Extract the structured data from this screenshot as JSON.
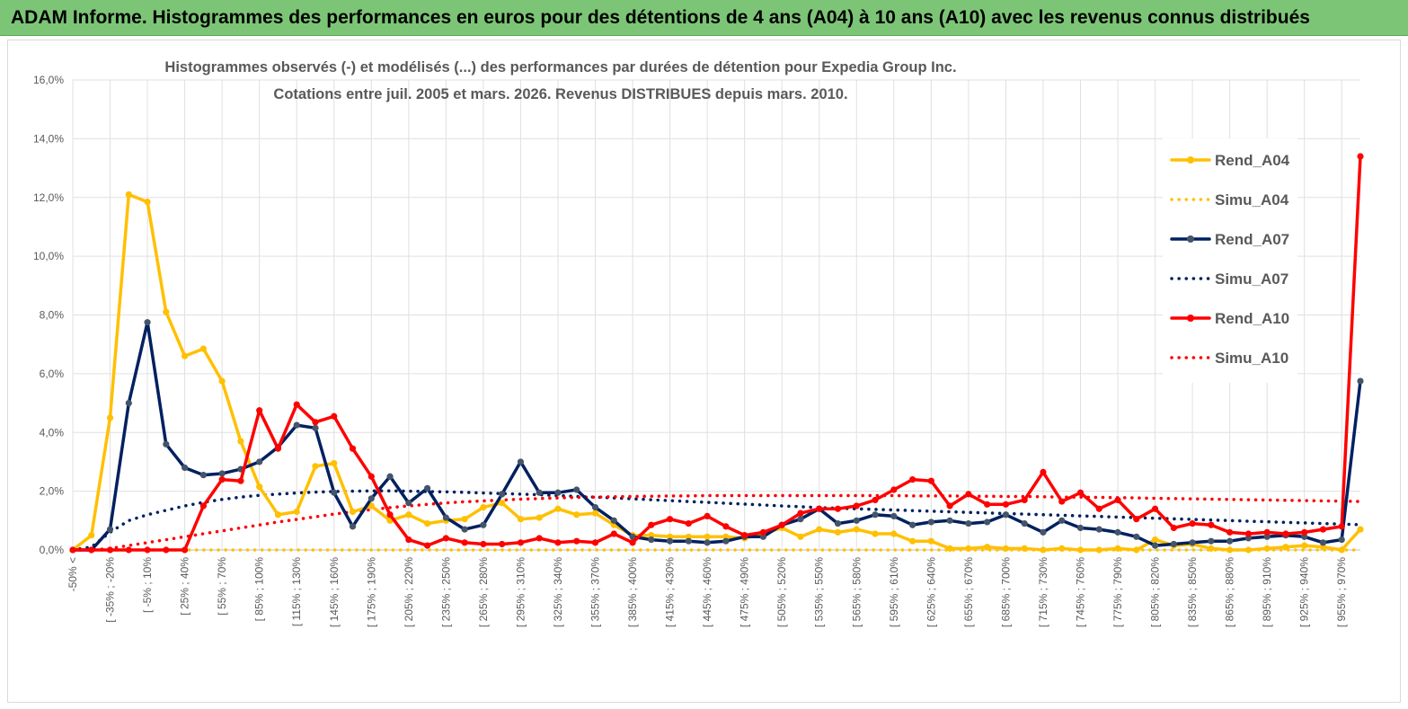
{
  "header": {
    "banner": "ADAM Informe. Histogrammes des performances en euros pour des détentions de 4 ans (A04) à 10 ans (A10) avec les revenus connus distribués"
  },
  "chart_data": {
    "type": "line",
    "title": "Histogrammes observés (-) et modélisés (...) des performances par durées de détention pour Expedia Group Inc.",
    "subtitle": "Cotations entre juil. 2005 et mars. 2026. Revenus DISTRIBUES depuis mars. 2010.",
    "y_ticks": [
      "0,0%",
      "2,0%",
      "4,0%",
      "6,0%",
      "8,0%",
      "10,0%",
      "12,0%",
      "14,0%",
      "16,0%"
    ],
    "ylim": [
      0,
      16
    ],
    "grid": true,
    "legend_position": "right",
    "x_labels": [
      "-50% <",
      "[ -35% ; -20%",
      "[ -5% ; 10%",
      "[ 25% ; 40%",
      "[ 55% ; 70%",
      "[ 85% ; 100%",
      "[ 115% ; 130%",
      "[ 145% ; 160%",
      "[ 175% ; 190%",
      "[ 205% ; 220%",
      "[ 235% ; 250%",
      "[ 265% ; 280%",
      "[ 295% ; 310%",
      "[ 325% ; 340%",
      "[ 355% ; 370%",
      "[ 385% ; 400%",
      "[ 415% ; 430%",
      "[ 445% ; 460%",
      "[ 475% ; 490%",
      "[ 505% ; 520%",
      "[ 535% ; 550%",
      "[ 565% ; 580%",
      "[ 595% ; 610%",
      "[ 625% ; 640%",
      "[ 655% ; 670%",
      "[ 685% ; 700%",
      "[ 715% ; 730%",
      "[ 745% ; 760%",
      "[ 775% ; 790%",
      "[ 805% ; 820%",
      "[ 835% ; 850%",
      "[ 865% ; 880%",
      "[ 895% ; 910%",
      "[ 925% ; 940%",
      "[ 955% ; 970%"
    ],
    "x_label_positions": [
      0,
      2,
      4,
      6,
      8,
      10,
      12,
      14,
      16,
      18,
      20,
      22,
      24,
      26,
      28,
      30,
      32,
      34,
      36,
      38,
      40,
      42,
      44,
      46,
      48,
      50,
      52,
      54,
      56,
      58,
      60,
      62,
      64,
      66,
      68
    ],
    "series": [
      {
        "name": "Rend_A04",
        "color": "#ffc000",
        "style": "solid",
        "markers": true,
        "values": [
          0.0,
          0.5,
          4.5,
          12.1,
          11.85,
          8.1,
          6.6,
          6.85,
          5.75,
          3.7,
          2.15,
          1.2,
          1.3,
          2.85,
          2.95,
          1.3,
          1.5,
          1.0,
          1.2,
          0.9,
          1.0,
          1.05,
          1.45,
          1.6,
          1.05,
          1.1,
          1.4,
          1.2,
          1.25,
          0.85,
          0.5,
          0.5,
          0.45,
          0.45,
          0.45,
          0.45,
          0.4,
          0.55,
          0.75,
          0.45,
          0.7,
          0.6,
          0.7,
          0.55,
          0.55,
          0.3,
          0.3,
          0.05,
          0.05,
          0.1,
          0.05,
          0.05,
          0.0,
          0.05,
          0.0,
          0.0,
          0.05,
          0.0,
          0.35,
          0.15,
          0.2,
          0.05,
          0.0,
          0.0,
          0.05,
          0.1,
          0.15,
          0.1,
          0.0,
          0.7
        ]
      },
      {
        "name": "Simu_A04",
        "color": "#ffc000",
        "style": "dotted",
        "markers": false,
        "values": [
          0.0,
          0.0,
          0.0,
          0.0,
          0.0,
          0.0,
          0.0,
          0.0,
          0.0,
          0.0,
          0.0,
          0.0,
          0.0,
          0.0,
          0.0,
          0.0,
          0.0,
          0.0,
          0.0,
          0.0,
          0.0,
          0.0,
          0.0,
          0.0,
          0.0,
          0.0,
          0.0,
          0.0,
          0.0,
          0.0,
          0.0,
          0.0,
          0.0,
          0.0,
          0.0,
          0.0,
          0.0,
          0.0,
          0.0,
          0.0,
          0.0,
          0.0,
          0.0,
          0.0,
          0.0,
          0.0,
          0.0,
          0.0,
          0.0,
          0.0,
          0.0,
          0.0,
          0.0,
          0.0,
          0.0,
          0.0,
          0.0,
          0.0,
          0.0,
          0.0,
          0.0,
          0.0,
          0.0,
          0.0,
          0.0,
          0.0,
          0.0,
          0.0,
          0.0,
          0.0
        ]
      },
      {
        "name": "Rend_A07",
        "color": "#002060",
        "style": "solid",
        "markers": true,
        "values": [
          0.0,
          0.0,
          0.7,
          5.0,
          7.75,
          3.6,
          2.8,
          2.55,
          2.6,
          2.75,
          3.0,
          3.5,
          4.25,
          4.15,
          1.95,
          0.8,
          1.75,
          2.5,
          1.6,
          2.1,
          1.1,
          0.7,
          0.85,
          1.9,
          3.0,
          1.95,
          1.95,
          2.05,
          1.45,
          1.0,
          0.45,
          0.35,
          0.3,
          0.3,
          0.25,
          0.3,
          0.45,
          0.45,
          0.85,
          1.05,
          1.4,
          0.9,
          1.0,
          1.2,
          1.15,
          0.85,
          0.95,
          1.0,
          0.9,
          0.95,
          1.2,
          0.9,
          0.6,
          1.0,
          0.75,
          0.7,
          0.6,
          0.45,
          0.15,
          0.2,
          0.25,
          0.3,
          0.3,
          0.4,
          0.45,
          0.5,
          0.45,
          0.25,
          0.35,
          5.75
        ]
      },
      {
        "name": "Simu_A07",
        "color": "#002060",
        "style": "dotted",
        "markers": false,
        "values": [
          0.0,
          0.1,
          0.6,
          1.0,
          1.2,
          1.35,
          1.5,
          1.62,
          1.72,
          1.8,
          1.86,
          1.9,
          1.94,
          1.97,
          1.99,
          2.0,
          2.01,
          2.01,
          2.0,
          1.99,
          1.98,
          1.96,
          1.94,
          1.92,
          1.9,
          1.88,
          1.85,
          1.82,
          1.8,
          1.77,
          1.74,
          1.71,
          1.68,
          1.65,
          1.62,
          1.59,
          1.56,
          1.53,
          1.5,
          1.47,
          1.44,
          1.42,
          1.4,
          1.38,
          1.36,
          1.34,
          1.32,
          1.3,
          1.28,
          1.26,
          1.24,
          1.22,
          1.2,
          1.18,
          1.16,
          1.14,
          1.12,
          1.1,
          1.08,
          1.06,
          1.04,
          1.02,
          1.0,
          0.98,
          0.96,
          0.94,
          0.92,
          0.9,
          0.88,
          0.86
        ]
      },
      {
        "name": "Rend_A10",
        "color": "#ff0000",
        "style": "solid",
        "markers": true,
        "values": [
          0.0,
          0.0,
          0.0,
          0.0,
          0.0,
          0.0,
          0.0,
          1.5,
          2.4,
          2.35,
          4.75,
          3.45,
          4.95,
          4.35,
          4.55,
          3.45,
          2.5,
          1.2,
          0.35,
          0.15,
          0.4,
          0.25,
          0.2,
          0.2,
          0.25,
          0.4,
          0.25,
          0.3,
          0.25,
          0.55,
          0.25,
          0.85,
          1.05,
          0.9,
          1.15,
          0.8,
          0.5,
          0.6,
          0.85,
          1.25,
          1.4,
          1.4,
          1.5,
          1.7,
          2.05,
          2.4,
          2.35,
          1.5,
          1.9,
          1.55,
          1.55,
          1.7,
          2.65,
          1.65,
          1.95,
          1.4,
          1.7,
          1.05,
          1.4,
          0.75,
          0.9,
          0.85,
          0.6,
          0.55,
          0.6,
          0.55,
          0.6,
          0.7,
          0.8,
          13.4
        ]
      },
      {
        "name": "Simu_A10",
        "color": "#ff0000",
        "style": "dotted",
        "markers": false,
        "values": [
          0.0,
          0.0,
          0.05,
          0.15,
          0.25,
          0.35,
          0.45,
          0.55,
          0.65,
          0.75,
          0.85,
          0.95,
          1.04,
          1.13,
          1.22,
          1.3,
          1.37,
          1.44,
          1.5,
          1.55,
          1.6,
          1.64,
          1.67,
          1.7,
          1.73,
          1.75,
          1.77,
          1.79,
          1.8,
          1.81,
          1.82,
          1.83,
          1.84,
          1.84,
          1.85,
          1.85,
          1.85,
          1.85,
          1.85,
          1.85,
          1.85,
          1.85,
          1.85,
          1.85,
          1.85,
          1.84,
          1.84,
          1.84,
          1.83,
          1.83,
          1.82,
          1.82,
          1.81,
          1.8,
          1.8,
          1.79,
          1.78,
          1.77,
          1.76,
          1.75,
          1.74,
          1.73,
          1.72,
          1.71,
          1.7,
          1.69,
          1.68,
          1.67,
          1.66,
          1.65
        ]
      }
    ]
  }
}
